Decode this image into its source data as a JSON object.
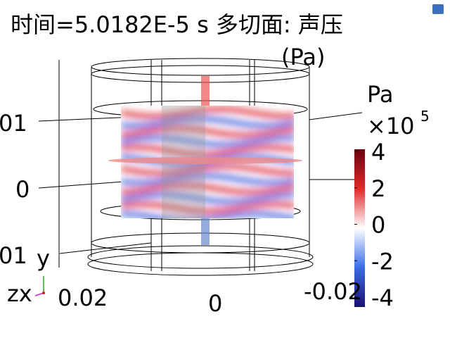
{
  "title": "时间=5.0182E-5 s 多切面: 声压",
  "title_unit": "(Pa)",
  "colorbar": {
    "label": "Pa",
    "scale": "×10",
    "exponent": "5",
    "ticks": [
      4,
      2,
      0,
      -2,
      -4
    ]
  },
  "axes": {
    "left_labels": [
      "01",
      "0",
      "01"
    ],
    "bottom_labels": [
      "0.02",
      "0",
      "-0.02"
    ],
    "triad": [
      "y",
      "zx"
    ]
  }
}
